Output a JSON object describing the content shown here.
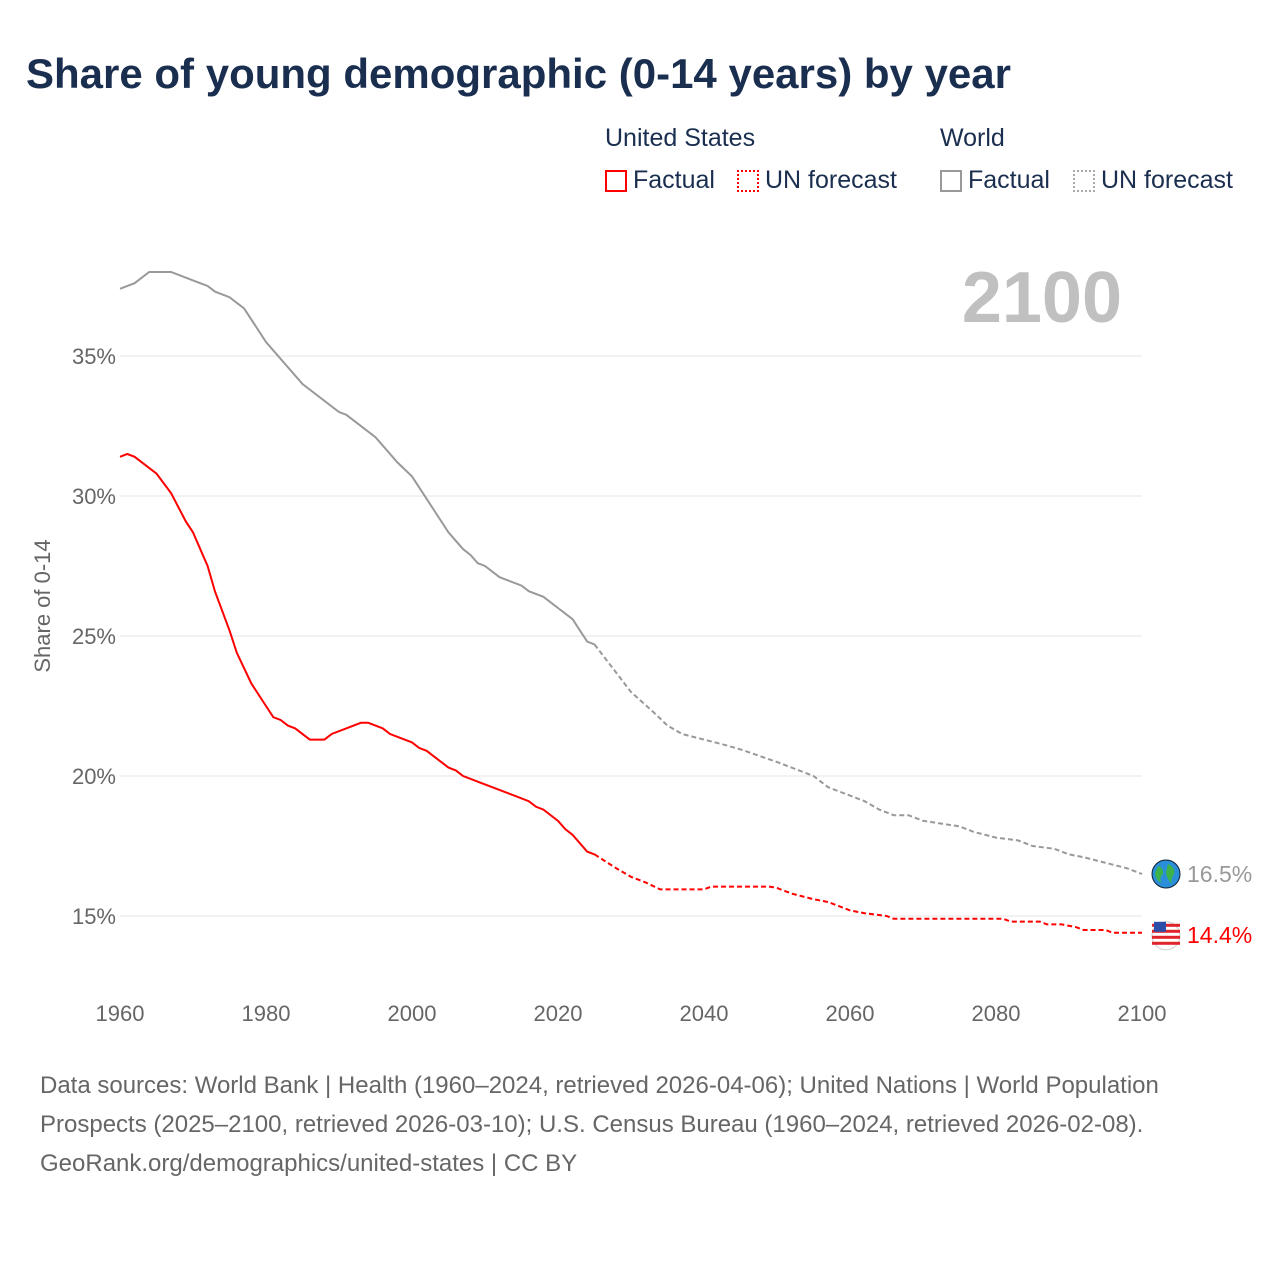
{
  "title": "Share of young demographic (0-14 years) by year",
  "legend": {
    "us_group": "United States",
    "world_group": "World",
    "factual": "Factual",
    "forecast": "UN forecast"
  },
  "year_label": "2100",
  "footer": {
    "sources": "Data sources: World Bank | Health (1960–2024, retrieved 2026-04-06); United Nations | World Population Prospects (2025–2100, retrieved 2026-03-10); U.S. Census Bureau (1960–2024, retrieved 2026-02-08).",
    "credit": "GeoRank.org/demographics/united-states | CC BY"
  },
  "colors": {
    "us": "#ff0000",
    "world": "#999999"
  },
  "chart_data": {
    "type": "line",
    "title": "Share of young demographic (0-14 years) by year",
    "ylabel": "Share of 0-14",
    "xlabel": "",
    "xlim": [
      1960,
      2100
    ],
    "ylim": [
      12.5,
      39
    ],
    "x_ticks": [
      "1960",
      "1980",
      "2000",
      "2020",
      "2040",
      "2060",
      "2080",
      "2100"
    ],
    "y_ticks": [
      "15%",
      "20%",
      "25%",
      "30%",
      "35%"
    ],
    "grid": true,
    "series": [
      {
        "name": "World",
        "end_label": "16.5%",
        "factual": [
          [
            1960,
            37.4
          ],
          [
            1962,
            37.6
          ],
          [
            1964,
            38.0
          ],
          [
            1967,
            38.0
          ],
          [
            1970,
            37.7
          ],
          [
            1972,
            37.5
          ],
          [
            1973,
            37.3
          ],
          [
            1975,
            37.1
          ],
          [
            1977,
            36.7
          ],
          [
            1980,
            35.5
          ],
          [
            1985,
            34.0
          ],
          [
            1990,
            33.0
          ],
          [
            1991,
            32.9
          ],
          [
            1995,
            32.1
          ],
          [
            1998,
            31.2
          ],
          [
            2000,
            30.7
          ],
          [
            2003,
            29.5
          ],
          [
            2005,
            28.7
          ],
          [
            2006,
            28.4
          ],
          [
            2007,
            28.1
          ],
          [
            2008,
            27.9
          ],
          [
            2009,
            27.6
          ],
          [
            2010,
            27.5
          ],
          [
            2012,
            27.1
          ],
          [
            2015,
            26.8
          ],
          [
            2016,
            26.6
          ],
          [
            2018,
            26.4
          ],
          [
            2020,
            26.0
          ],
          [
            2022,
            25.6
          ],
          [
            2024,
            24.8
          ],
          [
            2025,
            24.7
          ]
        ],
        "forecast": [
          [
            2025,
            24.7
          ],
          [
            2030,
            23.0
          ],
          [
            2033,
            22.3
          ],
          [
            2035,
            21.8
          ],
          [
            2037,
            21.5
          ],
          [
            2040,
            21.3
          ],
          [
            2043,
            21.1
          ],
          [
            2045,
            20.95
          ],
          [
            2050,
            20.5
          ],
          [
            2055,
            20.0
          ],
          [
            2057,
            19.6
          ],
          [
            2060,
            19.3
          ],
          [
            2062,
            19.1
          ],
          [
            2064,
            18.8
          ],
          [
            2066,
            18.6
          ],
          [
            2068,
            18.6
          ],
          [
            2070,
            18.4
          ],
          [
            2075,
            18.2
          ],
          [
            2077,
            18.0
          ],
          [
            2080,
            17.8
          ],
          [
            2083,
            17.7
          ],
          [
            2085,
            17.5
          ],
          [
            2088,
            17.4
          ],
          [
            2090,
            17.2
          ],
          [
            2092,
            17.1
          ],
          [
            2095,
            16.9
          ],
          [
            2098,
            16.7
          ],
          [
            2100,
            16.5
          ]
        ]
      },
      {
        "name": "United States",
        "end_label": "14.4%",
        "factual": [
          [
            1960,
            31.4
          ],
          [
            1961,
            31.5
          ],
          [
            1962,
            31.4
          ],
          [
            1965,
            30.8
          ],
          [
            1967,
            30.1
          ],
          [
            1969,
            29.1
          ],
          [
            1970,
            28.7
          ],
          [
            1972,
            27.5
          ],
          [
            1973,
            26.6
          ],
          [
            1975,
            25.2
          ],
          [
            1976,
            24.4
          ],
          [
            1978,
            23.3
          ],
          [
            1980,
            22.5
          ],
          [
            1981,
            22.1
          ],
          [
            1982,
            22.0
          ],
          [
            1983,
            21.8
          ],
          [
            1984,
            21.7
          ],
          [
            1986,
            21.3
          ],
          [
            1988,
            21.3
          ],
          [
            1989,
            21.5
          ],
          [
            1993,
            21.9
          ],
          [
            1994,
            21.9
          ],
          [
            1996,
            21.7
          ],
          [
            1997,
            21.5
          ],
          [
            2000,
            21.2
          ],
          [
            2001,
            21.0
          ],
          [
            2002,
            20.9
          ],
          [
            2005,
            20.3
          ],
          [
            2006,
            20.2
          ],
          [
            2007,
            20.0
          ],
          [
            2010,
            19.7
          ],
          [
            2014,
            19.3
          ],
          [
            2016,
            19.1
          ],
          [
            2017,
            18.9
          ],
          [
            2018,
            18.8
          ],
          [
            2020,
            18.4
          ],
          [
            2021,
            18.1
          ],
          [
            2022,
            17.9
          ],
          [
            2024,
            17.3
          ],
          [
            2025,
            17.2
          ]
        ],
        "forecast": [
          [
            2025,
            17.2
          ],
          [
            2028,
            16.7
          ],
          [
            2030,
            16.4
          ],
          [
            2032,
            16.2
          ],
          [
            2034,
            15.95
          ],
          [
            2040,
            15.95
          ],
          [
            2041,
            16.05
          ],
          [
            2049,
            16.05
          ],
          [
            2050,
            16.0
          ],
          [
            2052,
            15.8
          ],
          [
            2055,
            15.6
          ],
          [
            2057,
            15.5
          ],
          [
            2060,
            15.2
          ],
          [
            2062,
            15.1
          ],
          [
            2065,
            15.0
          ],
          [
            2066,
            14.9
          ],
          [
            2081,
            14.9
          ],
          [
            2082,
            14.8
          ],
          [
            2086,
            14.8
          ],
          [
            2087,
            14.7
          ],
          [
            2089,
            14.7
          ],
          [
            2091,
            14.6
          ],
          [
            2092,
            14.5
          ],
          [
            2095,
            14.5
          ],
          [
            2096,
            14.4
          ],
          [
            2100,
            14.4
          ]
        ]
      }
    ]
  }
}
